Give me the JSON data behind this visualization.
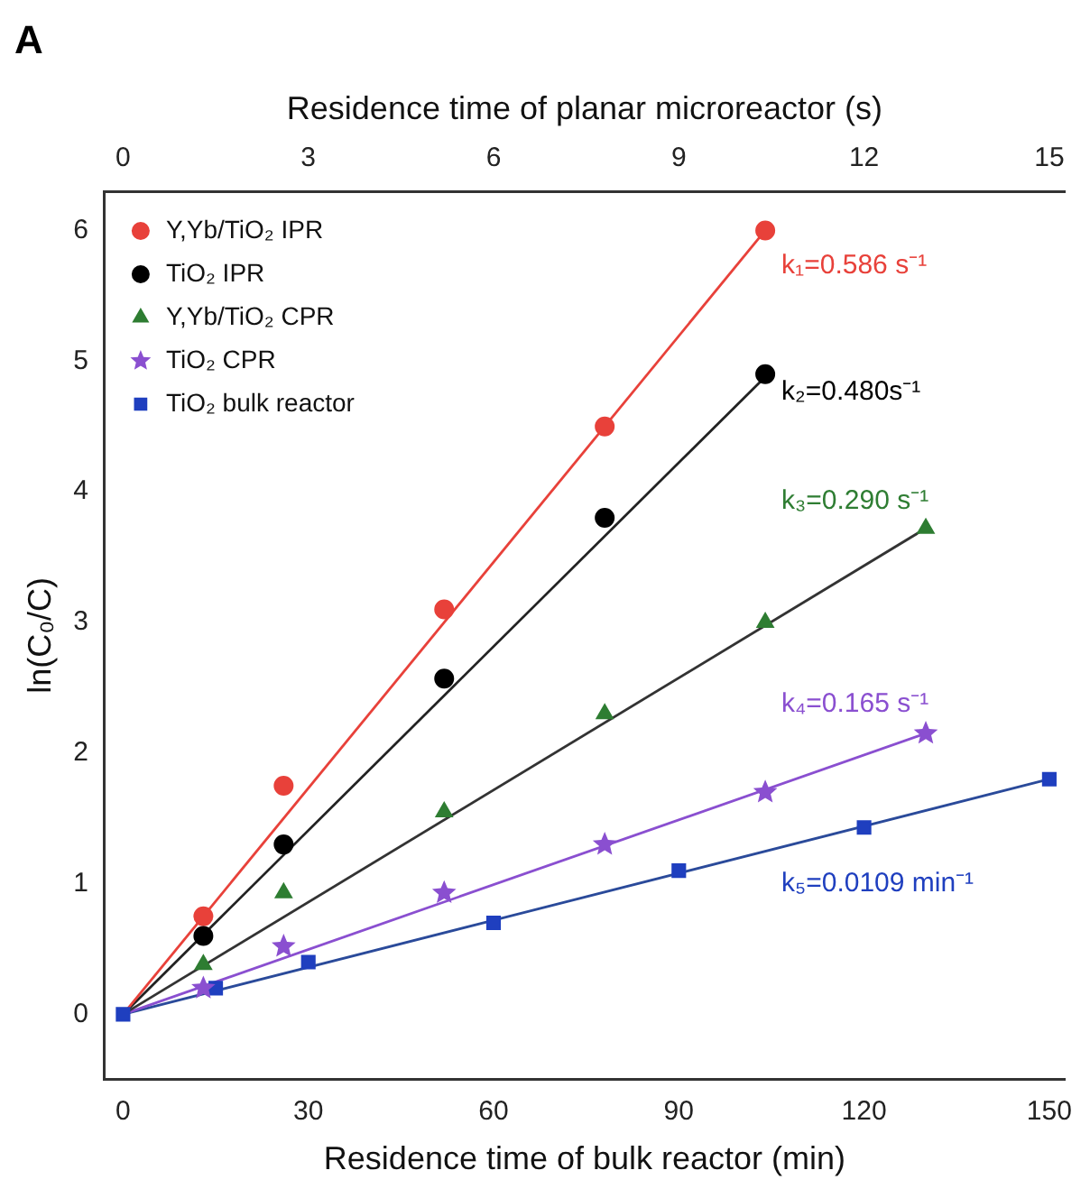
{
  "chart_data": {
    "type": "scatter",
    "title": "A",
    "xlabel": "Residence time of bulk reactor (min)",
    "x2label": "Residence time of planar microreactor (s)",
    "ylabel": "ln(C₀/C)",
    "xlim": [
      -3,
      152.5
    ],
    "xticks": [
      0,
      30,
      60,
      90,
      120,
      150
    ],
    "x2lim": [
      -0.3,
      15.25
    ],
    "x2ticks": [
      0,
      3,
      6,
      9,
      12,
      15
    ],
    "ylim": [
      -0.5,
      6.3
    ],
    "yticks": [
      0,
      1,
      2,
      3,
      4,
      5,
      6
    ],
    "legend": "top left",
    "grid": false,
    "series": [
      {
        "name": "Y,Yb/TiO₂ IPR",
        "color": "#e8413a",
        "marker": "circle",
        "axis": "x2",
        "x": [
          1.3,
          2.6,
          5.2,
          7.8,
          10.4
        ],
        "values": [
          0.75,
          1.75,
          3.1,
          4.5,
          6.0
        ]
      },
      {
        "name": "TiO₂ IPR",
        "color": "#000000",
        "marker": "circle",
        "axis": "x2",
        "x": [
          1.3,
          2.6,
          5.2,
          7.8,
          10.4
        ],
        "values": [
          0.6,
          1.3,
          2.57,
          3.8,
          4.9
        ]
      },
      {
        "name": "Y,Yb/TiO₂ CPR",
        "color": "#2e7d32",
        "marker": "triangle",
        "axis": "x2",
        "x": [
          1.3,
          2.6,
          5.2,
          7.8,
          10.4,
          13
        ],
        "values": [
          0.38,
          0.93,
          1.55,
          2.3,
          3.0,
          3.72
        ]
      },
      {
        "name": "TiO₂ CPR",
        "color": "#8a4fd0",
        "marker": "star",
        "axis": "x2",
        "x": [
          1.3,
          2.6,
          5.2,
          7.8,
          10.4,
          13
        ],
        "values": [
          0.2,
          0.52,
          0.93,
          1.3,
          1.7,
          2.15
        ]
      },
      {
        "name": "TiO₂ bulk reactor",
        "color": "#1f3fbf",
        "marker": "square",
        "x": [
          0,
          15,
          30,
          60,
          90,
          120,
          150
        ],
        "values": [
          0,
          0.2,
          0.4,
          0.7,
          1.1,
          1.43,
          1.8
        ]
      },
      {
        "type": "line",
        "color": "#e8413a",
        "axis": "x2",
        "x": [
          0,
          10.4
        ],
        "values": [
          0,
          6.0
        ]
      },
      {
        "type": "line",
        "color": "#222222",
        "axis": "x2",
        "x": [
          0,
          10.4
        ],
        "values": [
          0,
          4.88
        ]
      },
      {
        "type": "line",
        "color": "#333333",
        "axis": "x2",
        "x": [
          0,
          13
        ],
        "values": [
          0,
          3.72
        ]
      },
      {
        "type": "line",
        "color": "#8a4fd0",
        "axis": "x2",
        "x": [
          0,
          13
        ],
        "values": [
          0,
          2.15
        ]
      },
      {
        "type": "line",
        "color": "#2a4a9a",
        "x": [
          0,
          150
        ],
        "values": [
          0,
          1.8
        ]
      }
    ],
    "annotations": [
      "k₁=0.586 s⁻¹",
      "k₂=0.480s⁻¹",
      "k₃=0.290 s⁻¹",
      "k₄=0.165 s⁻¹",
      "k₅=0.0109 min⁻¹"
    ]
  }
}
